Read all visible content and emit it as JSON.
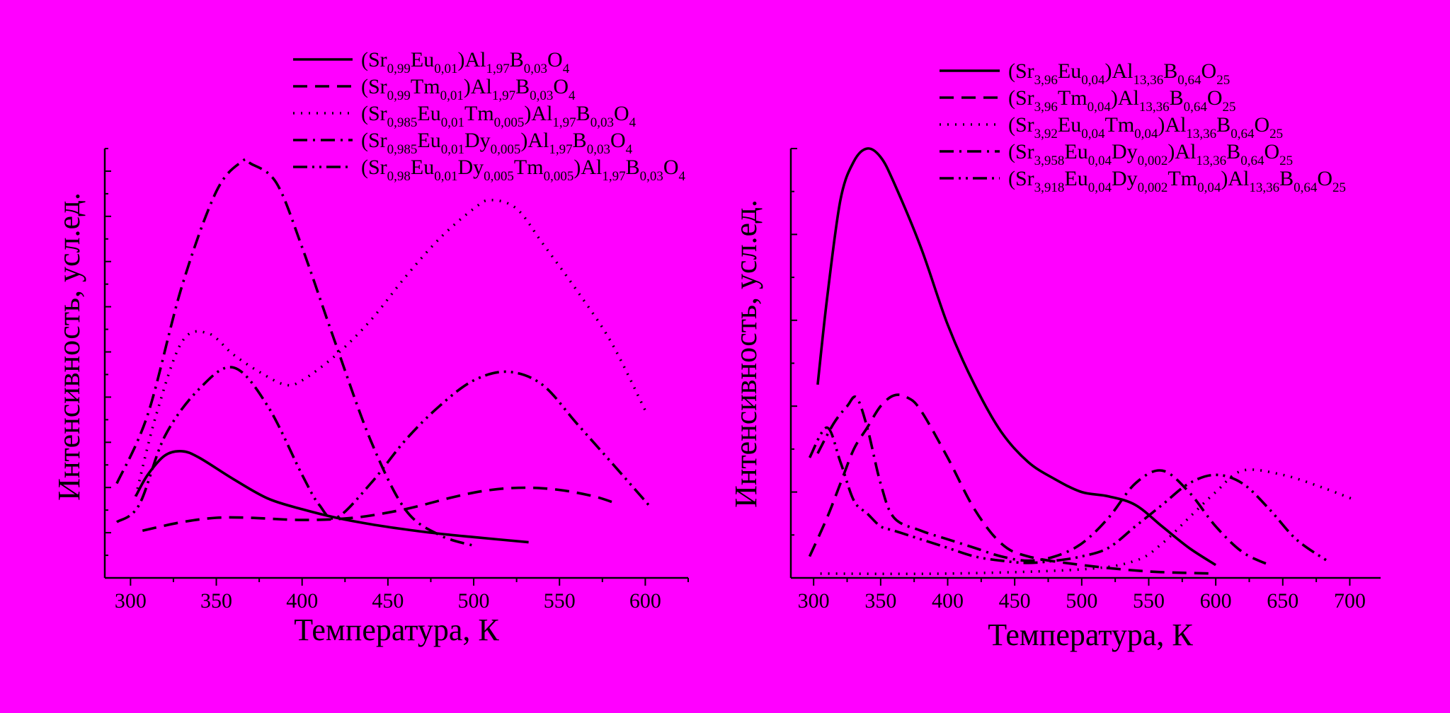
{
  "chart_data": [
    {
      "type": "line",
      "xlabel": "Температура, К",
      "ylabel": "Интенсивность, усл.ед.",
      "xlim": [
        285,
        625
      ],
      "ylim": [
        0,
        100
      ],
      "xticks": [
        "300",
        "350",
        "400",
        "450",
        "500",
        "550",
        "600"
      ],
      "grid": false,
      "legend_position": "top-right",
      "series": [
        {
          "name": {
            "p": [
              [
                "(Sr",
                "n"
              ],
              [
                "0,99",
                "s"
              ],
              [
                "Eu",
                "n"
              ],
              [
                "0,01",
                "s"
              ],
              [
                ")Al",
                "n"
              ],
              [
                "1,97",
                "s"
              ],
              [
                "B",
                "n"
              ],
              [
                "0,03",
                "s"
              ],
              [
                "O",
                "n"
              ],
              [
                "4",
                "s"
              ]
            ]
          },
          "dash": "solid",
          "x": [
            303,
            310,
            320,
            330,
            340,
            360,
            380,
            400,
            420,
            440,
            460,
            480,
            500,
            532
          ],
          "y": [
            19,
            24,
            28.5,
            29.5,
            28,
            23,
            18.5,
            16,
            14,
            12.5,
            11.3,
            10.3,
            9.5,
            8.3
          ]
        },
        {
          "name": {
            "p": [
              [
                "(Sr",
                "n"
              ],
              [
                "0,99",
                "s"
              ],
              [
                "Tm",
                "n"
              ],
              [
                "0,01",
                "s"
              ],
              [
                ")Al",
                "n"
              ],
              [
                "1,97",
                "s"
              ],
              [
                "B",
                "n"
              ],
              [
                "0,03",
                "s"
              ],
              [
                "O",
                "n"
              ],
              [
                "4",
                "s"
              ]
            ]
          },
          "dash": "dashed",
          "x": [
            307,
            330,
            350,
            370,
            400,
            430,
            460,
            490,
            510,
            530,
            550,
            570,
            582
          ],
          "y": [
            11,
            13,
            14,
            14,
            13.5,
            14,
            16,
            19,
            20.5,
            21,
            20.5,
            19,
            17.5
          ]
        },
        {
          "name": {
            "p": [
              [
                "(Sr",
                "n"
              ],
              [
                "0,985",
                "s"
              ],
              [
                "Eu",
                "n"
              ],
              [
                "0,01",
                "s"
              ],
              [
                "Tm",
                "n"
              ],
              [
                "0,005",
                "s"
              ],
              [
                ")Al",
                "n"
              ],
              [
                "1,97",
                "s"
              ],
              [
                "B",
                "n"
              ],
              [
                "0,03",
                "s"
              ],
              [
                "O",
                "n"
              ],
              [
                "4",
                "s"
              ]
            ]
          },
          "dash": "dotted",
          "x": [
            303,
            315,
            330,
            345,
            360,
            375,
            390,
            400,
            420,
            440,
            460,
            480,
            500,
            510,
            525,
            540,
            560,
            580,
            600
          ],
          "y": [
            19,
            38,
            55,
            57,
            52,
            48,
            45,
            46,
            52,
            60,
            70,
            79,
            86,
            88,
            86,
            78,
            67,
            55,
            39
          ]
        },
        {
          "name": {
            "p": [
              [
                "(Sr",
                "n"
              ],
              [
                "0,985",
                "s"
              ],
              [
                "Eu",
                "n"
              ],
              [
                "0,01",
                "s"
              ],
              [
                "Dy",
                "n"
              ],
              [
                "0,005",
                "s"
              ],
              [
                ")Al",
                "n"
              ],
              [
                "1,97",
                "s"
              ],
              [
                "B",
                "n"
              ],
              [
                "0,03",
                "s"
              ],
              [
                "O",
                "n"
              ],
              [
                "4",
                "s"
              ]
            ]
          },
          "dash": "dashdot",
          "x": [
            292,
            310,
            330,
            350,
            365,
            370,
            385,
            400,
            420,
            440,
            460,
            480,
            500
          ],
          "y": [
            22,
            38,
            68,
            90,
            97,
            96.5,
            92,
            77,
            54,
            32,
            16,
            10,
            7.5
          ]
        },
        {
          "name": {
            "p": [
              [
                "(Sr",
                "n"
              ],
              [
                "0,98",
                "s"
              ],
              [
                "Eu",
                "n"
              ],
              [
                "0,01",
                "s"
              ],
              [
                "Dy",
                "n"
              ],
              [
                "0,005",
                "s"
              ],
              [
                "Tm",
                "n"
              ],
              [
                "0,005",
                "s"
              ],
              [
                ")Al",
                "n"
              ],
              [
                "1,97",
                "s"
              ],
              [
                "B",
                "n"
              ],
              [
                "0,03",
                "s"
              ],
              [
                "O",
                "n"
              ],
              [
                "4",
                "s"
              ]
            ]
          },
          "dash": "dashdotdot",
          "x": [
            292,
            305,
            320,
            340,
            360,
            380,
            400,
            410,
            420,
            440,
            460,
            480,
            500,
            520,
            540,
            560,
            580,
            603
          ],
          "y": [
            13,
            17,
            33,
            44,
            49,
            40,
            24,
            17,
            14,
            22,
            32,
            40,
            46,
            48,
            45,
            36,
            27,
            16.5
          ]
        }
      ]
    },
    {
      "type": "line",
      "xlabel": "Температура, К",
      "ylabel": "Интенсивность, усл.ед.",
      "xlim": [
        283,
        723
      ],
      "ylim": [
        0,
        100
      ],
      "xticks": [
        "300",
        "350",
        "400",
        "450",
        "500",
        "550",
        "600",
        "650",
        "700"
      ],
      "grid": false,
      "legend_position": "top-right",
      "series": [
        {
          "name": {
            "p": [
              [
                "(Sr",
                "n"
              ],
              [
                "3,96",
                "s"
              ],
              [
                "Eu",
                "n"
              ],
              [
                "0,04",
                "s"
              ],
              [
                ")Al",
                "n"
              ],
              [
                "13,36",
                "s"
              ],
              [
                "B",
                "n"
              ],
              [
                "0,64",
                "s"
              ],
              [
                "O",
                "n"
              ],
              [
                "25",
                "s"
              ]
            ]
          },
          "dash": "solid",
          "x": [
            303,
            310,
            320,
            330,
            340,
            350,
            360,
            380,
            400,
            420,
            440,
            460,
            480,
            500,
            520,
            540,
            560,
            580,
            600
          ],
          "y": [
            45,
            65,
            88,
            97,
            100,
            98,
            92,
            77,
            59,
            45,
            34,
            27,
            23,
            20,
            19,
            17,
            12,
            7,
            3
          ]
        },
        {
          "name": {
            "p": [
              [
                "(Sr",
                "n"
              ],
              [
                "3,96",
                "s"
              ],
              [
                "Tm",
                "n"
              ],
              [
                "0,04",
                "s"
              ],
              [
                ")Al",
                "n"
              ],
              [
                "13,36",
                "s"
              ],
              [
                "B",
                "n"
              ],
              [
                "0,64",
                "s"
              ],
              [
                "O",
                "n"
              ],
              [
                "25",
                "s"
              ]
            ]
          },
          "dash": "dashed",
          "x": [
            297,
            310,
            320,
            330,
            340,
            350,
            360,
            370,
            380,
            400,
            420,
            440,
            460,
            500,
            550,
            600
          ],
          "y": [
            5,
            14,
            22,
            30,
            35,
            40,
            42.5,
            42,
            39,
            28,
            16,
            8,
            5,
            3,
            1.5,
            1
          ]
        },
        {
          "name": {
            "p": [
              [
                "(Sr",
                "n"
              ],
              [
                "3,92",
                "s"
              ],
              [
                "Eu",
                "n"
              ],
              [
                "0,04",
                "s"
              ],
              [
                "Tm",
                "n"
              ],
              [
                "0,04",
                "s"
              ],
              [
                ")Al",
                "n"
              ],
              [
                "13,36",
                "s"
              ],
              [
                "B",
                "n"
              ],
              [
                "0,64",
                "s"
              ],
              [
                "O",
                "n"
              ],
              [
                "25",
                "s"
              ]
            ]
          },
          "dash": "dotted",
          "x": [
            305,
            400,
            500,
            540,
            560,
            580,
            600,
            620,
            650,
            680,
            705
          ],
          "y": [
            1,
            1,
            2,
            4,
            8,
            14,
            20,
            25,
            24,
            21,
            18
          ]
        },
        {
          "name": {
            "p": [
              [
                "(Sr",
                "n"
              ],
              [
                "3,958",
                "s"
              ],
              [
                "Eu",
                "n"
              ],
              [
                "0,04",
                "s"
              ],
              [
                "Dy",
                "n"
              ],
              [
                "0,002",
                "s"
              ],
              [
                ")Al",
                "n"
              ],
              [
                "13,36",
                "s"
              ],
              [
                "B",
                "n"
              ],
              [
                "0,64",
                "s"
              ],
              [
                "O",
                "n"
              ],
              [
                "25",
                "s"
              ]
            ]
          },
          "dash": "dashdot",
          "x": [
            303,
            315,
            325,
            332,
            340,
            350,
            360,
            380,
            400,
            420,
            440,
            460,
            480,
            500,
            520,
            540,
            560,
            580,
            600,
            620,
            640
          ],
          "y": [
            29,
            36,
            40,
            42,
            35,
            22,
            14,
            11,
            9,
            7,
            5,
            4,
            5,
            8,
            14,
            22,
            25,
            20,
            12,
            6,
            3
          ]
        },
        {
          "name": {
            "p": [
              [
                "(Sr",
                "n"
              ],
              [
                "3,918",
                "s"
              ],
              [
                "Eu",
                "n"
              ],
              [
                "0,04",
                "s"
              ],
              [
                "Dy",
                "n"
              ],
              [
                "0,002",
                "s"
              ],
              [
                "Tm",
                "n"
              ],
              [
                "0,04",
                "s"
              ],
              [
                ")Al",
                "n"
              ],
              [
                "13,36",
                "s"
              ],
              [
                "B",
                "n"
              ],
              [
                "0,64",
                "s"
              ],
              [
                "O",
                "n"
              ],
              [
                "25",
                "s"
              ]
            ]
          },
          "dash": "dashdotdot",
          "x": [
            297,
            310,
            320,
            330,
            340,
            350,
            360,
            380,
            400,
            420,
            440,
            460,
            480,
            500,
            520,
            540,
            560,
            580,
            600,
            620,
            640,
            660,
            683
          ],
          "y": [
            28,
            35,
            27,
            18,
            15,
            12,
            11,
            9,
            7,
            5,
            4,
            3.5,
            4,
            5,
            7,
            12,
            17,
            22,
            24,
            22,
            16,
            9,
            4
          ]
        }
      ]
    }
  ]
}
